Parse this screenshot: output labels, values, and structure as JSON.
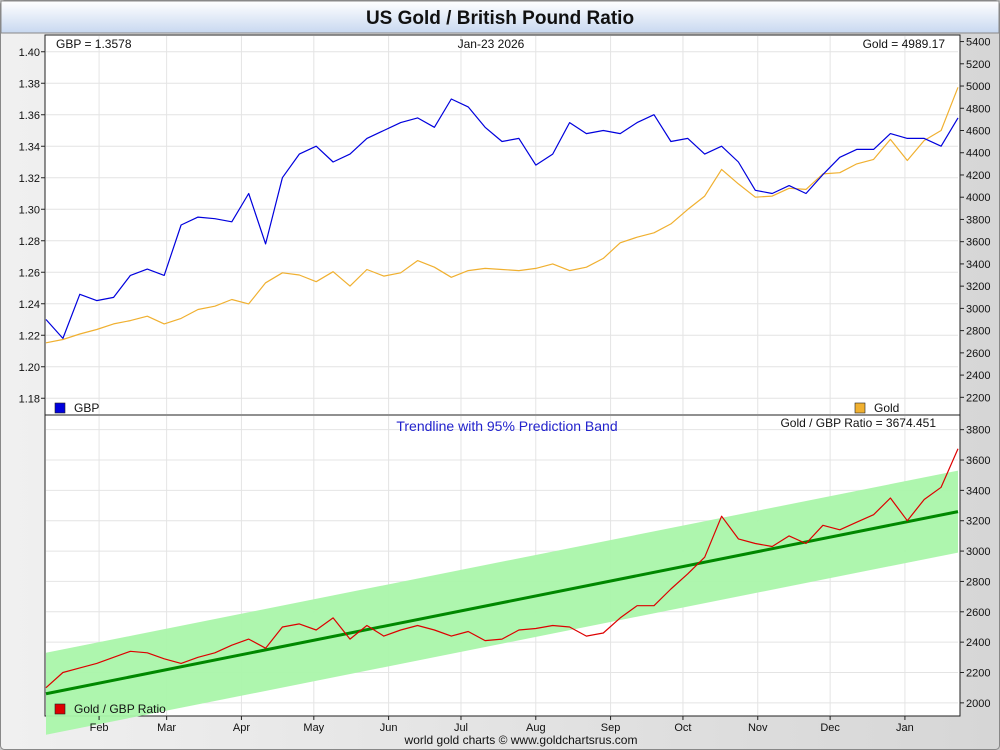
{
  "title": "US Gold / British Pound Ratio",
  "footer": "world gold charts © www.goldchartsrus.com",
  "colors": {
    "gbp": "#0000dd",
    "gold": "#f0b030",
    "ratio": "#dd0000",
    "trend": "#008800",
    "band": "#aaf5aa"
  },
  "chart_data": [
    {
      "type": "line",
      "name": "upper",
      "date_label": "Jan-23  2026",
      "gbp_readout": "GBP = 1.3578",
      "gold_readout": "Gold = 4989.17",
      "x_tick_labels": [
        "Feb",
        "Mar",
        "Apr",
        "May",
        "Jun",
        "Jul",
        "Aug",
        "Sep",
        "Oct",
        "Nov",
        "Dec",
        "Jan"
      ],
      "x_range": [
        "2025-01-10",
        "2026-01-23"
      ],
      "y_left": {
        "range": [
          1.17,
          1.41
        ],
        "ticks": [
          "1.18",
          "1.20",
          "1.22",
          "1.24",
          "1.26",
          "1.28",
          "1.30",
          "1.32",
          "1.34",
          "1.36",
          "1.38",
          "1.40"
        ]
      },
      "y_right": {
        "range": [
          2050,
          5450
        ],
        "ticks": [
          "2200",
          "2400",
          "2600",
          "2800",
          "3000",
          "3200",
          "3400",
          "3600",
          "3800",
          "4000",
          "4200",
          "4400",
          "4600",
          "4800",
          "5000",
          "5200",
          "5400"
        ]
      },
      "legend": [
        "GBP",
        "Gold"
      ],
      "series": [
        {
          "name": "GBP",
          "axis": "left",
          "points": [
            [
              "2025-01-10",
              1.23
            ],
            [
              "2025-01-17",
              1.218
            ],
            [
              "2025-01-24",
              1.246
            ],
            [
              "2025-01-31",
              1.242
            ],
            [
              "2025-02-07",
              1.244
            ],
            [
              "2025-02-14",
              1.258
            ],
            [
              "2025-02-21",
              1.262
            ],
            [
              "2025-02-28",
              1.258
            ],
            [
              "2025-03-07",
              1.29
            ],
            [
              "2025-03-14",
              1.295
            ],
            [
              "2025-03-21",
              1.294
            ],
            [
              "2025-03-28",
              1.292
            ],
            [
              "2025-04-04",
              1.31
            ],
            [
              "2025-04-11",
              1.278
            ],
            [
              "2025-04-18",
              1.32
            ],
            [
              "2025-04-25",
              1.335
            ],
            [
              "2025-05-02",
              1.34
            ],
            [
              "2025-05-09",
              1.33
            ],
            [
              "2025-05-16",
              1.335
            ],
            [
              "2025-05-23",
              1.345
            ],
            [
              "2025-05-30",
              1.35
            ],
            [
              "2025-06-06",
              1.355
            ],
            [
              "2025-06-13",
              1.358
            ],
            [
              "2025-06-20",
              1.352
            ],
            [
              "2025-06-27",
              1.37
            ],
            [
              "2025-07-04",
              1.365
            ],
            [
              "2025-07-11",
              1.352
            ],
            [
              "2025-07-18",
              1.343
            ],
            [
              "2025-07-25",
              1.345
            ],
            [
              "2025-08-01",
              1.328
            ],
            [
              "2025-08-08",
              1.335
            ],
            [
              "2025-08-15",
              1.355
            ],
            [
              "2025-08-22",
              1.348
            ],
            [
              "2025-08-29",
              1.35
            ],
            [
              "2025-09-05",
              1.348
            ],
            [
              "2025-09-12",
              1.355
            ],
            [
              "2025-09-19",
              1.36
            ],
            [
              "2025-09-26",
              1.343
            ],
            [
              "2025-10-03",
              1.345
            ],
            [
              "2025-10-10",
              1.335
            ],
            [
              "2025-10-17",
              1.34
            ],
            [
              "2025-10-24",
              1.33
            ],
            [
              "2025-10-31",
              1.312
            ],
            [
              "2025-11-07",
              1.31
            ],
            [
              "2025-11-14",
              1.315
            ],
            [
              "2025-11-21",
              1.31
            ],
            [
              "2025-11-28",
              1.322
            ],
            [
              "2025-12-05",
              1.333
            ],
            [
              "2025-12-12",
              1.338
            ],
            [
              "2025-12-19",
              1.338
            ],
            [
              "2025-12-26",
              1.348
            ],
            [
              "2026-01-02",
              1.345
            ],
            [
              "2026-01-09",
              1.345
            ],
            [
              "2026-01-16",
              1.34
            ],
            [
              "2026-01-23",
              1.358
            ]
          ]
        },
        {
          "name": "Gold",
          "axis": "right",
          "points": [
            [
              "2025-01-10",
              2690
            ],
            [
              "2025-01-17",
              2720
            ],
            [
              "2025-01-24",
              2770
            ],
            [
              "2025-01-31",
              2810
            ],
            [
              "2025-02-07",
              2860
            ],
            [
              "2025-02-14",
              2890
            ],
            [
              "2025-02-21",
              2930
            ],
            [
              "2025-02-28",
              2860
            ],
            [
              "2025-03-07",
              2910
            ],
            [
              "2025-03-14",
              2990
            ],
            [
              "2025-03-21",
              3020
            ],
            [
              "2025-03-28",
              3080
            ],
            [
              "2025-04-04",
              3040
            ],
            [
              "2025-04-11",
              3230
            ],
            [
              "2025-04-18",
              3320
            ],
            [
              "2025-04-25",
              3300
            ],
            [
              "2025-05-02",
              3240
            ],
            [
              "2025-05-09",
              3330
            ],
            [
              "2025-05-16",
              3200
            ],
            [
              "2025-05-23",
              3350
            ],
            [
              "2025-05-30",
              3290
            ],
            [
              "2025-06-06",
              3320
            ],
            [
              "2025-06-13",
              3430
            ],
            [
              "2025-06-20",
              3370
            ],
            [
              "2025-06-27",
              3280
            ],
            [
              "2025-07-04",
              3340
            ],
            [
              "2025-07-11",
              3360
            ],
            [
              "2025-07-18",
              3350
            ],
            [
              "2025-07-25",
              3340
            ],
            [
              "2025-08-01",
              3360
            ],
            [
              "2025-08-08",
              3400
            ],
            [
              "2025-08-15",
              3340
            ],
            [
              "2025-08-22",
              3370
            ],
            [
              "2025-08-29",
              3450
            ],
            [
              "2025-09-05",
              3590
            ],
            [
              "2025-09-12",
              3640
            ],
            [
              "2025-09-19",
              3680
            ],
            [
              "2025-09-26",
              3760
            ],
            [
              "2025-10-03",
              3890
            ],
            [
              "2025-10-10",
              4010
            ],
            [
              "2025-10-17",
              4250
            ],
            [
              "2025-10-24",
              4120
            ],
            [
              "2025-10-31",
              4000
            ],
            [
              "2025-11-07",
              4010
            ],
            [
              "2025-11-14",
              4080
            ],
            [
              "2025-11-21",
              4070
            ],
            [
              "2025-11-28",
              4210
            ],
            [
              "2025-12-05",
              4220
            ],
            [
              "2025-12-12",
              4300
            ],
            [
              "2025-12-19",
              4340
            ],
            [
              "2025-12-26",
              4520
            ],
            [
              "2026-01-02",
              4330
            ],
            [
              "2026-01-09",
              4510
            ],
            [
              "2026-01-16",
              4600
            ],
            [
              "2026-01-23",
              4989
            ]
          ]
        }
      ]
    },
    {
      "type": "line",
      "name": "lower",
      "subtitle": "Trendline with 95% Prediction Band",
      "ratio_readout": "Gold / GBP Ratio = 3674.451",
      "x_tick_labels": [
        "Feb",
        "Mar",
        "Apr",
        "May",
        "Jun",
        "Jul",
        "Aug",
        "Sep",
        "Oct",
        "Nov",
        "Dec",
        "Jan"
      ],
      "y_range": [
        1920,
        3890
      ],
      "y_ticks": [
        "2000",
        "2200",
        "2400",
        "2600",
        "2800",
        "3000",
        "3200",
        "3400",
        "3600",
        "3800"
      ],
      "legend": [
        "Gold / GBP Ratio"
      ],
      "trendline": {
        "start": [
          "2025-01-10",
          2060
        ],
        "end": [
          "2026-01-23",
          3260
        ]
      },
      "band_half_width": 270,
      "series": [
        {
          "name": "Gold / GBP Ratio",
          "points": [
            [
              "2025-01-10",
              2100
            ],
            [
              "2025-01-17",
              2200
            ],
            [
              "2025-01-24",
              2230
            ],
            [
              "2025-01-31",
              2260
            ],
            [
              "2025-02-07",
              2300
            ],
            [
              "2025-02-14",
              2340
            ],
            [
              "2025-02-21",
              2330
            ],
            [
              "2025-02-28",
              2290
            ],
            [
              "2025-03-07",
              2260
            ],
            [
              "2025-03-14",
              2300
            ],
            [
              "2025-03-21",
              2330
            ],
            [
              "2025-03-28",
              2380
            ],
            [
              "2025-04-04",
              2420
            ],
            [
              "2025-04-11",
              2360
            ],
            [
              "2025-04-18",
              2500
            ],
            [
              "2025-04-25",
              2520
            ],
            [
              "2025-05-02",
              2480
            ],
            [
              "2025-05-09",
              2560
            ],
            [
              "2025-05-16",
              2420
            ],
            [
              "2025-05-23",
              2510
            ],
            [
              "2025-05-30",
              2440
            ],
            [
              "2025-06-06",
              2480
            ],
            [
              "2025-06-13",
              2510
            ],
            [
              "2025-06-20",
              2480
            ],
            [
              "2025-06-27",
              2440
            ],
            [
              "2025-07-04",
              2470
            ],
            [
              "2025-07-11",
              2410
            ],
            [
              "2025-07-18",
              2420
            ],
            [
              "2025-07-25",
              2480
            ],
            [
              "2025-08-01",
              2490
            ],
            [
              "2025-08-08",
              2510
            ],
            [
              "2025-08-15",
              2500
            ],
            [
              "2025-08-22",
              2440
            ],
            [
              "2025-08-29",
              2460
            ],
            [
              "2025-09-05",
              2560
            ],
            [
              "2025-09-12",
              2640
            ],
            [
              "2025-09-19",
              2640
            ],
            [
              "2025-09-26",
              2750
            ],
            [
              "2025-10-03",
              2850
            ],
            [
              "2025-10-10",
              2960
            ],
            [
              "2025-10-17",
              3230
            ],
            [
              "2025-10-24",
              3080
            ],
            [
              "2025-10-31",
              3050
            ],
            [
              "2025-11-07",
              3030
            ],
            [
              "2025-11-14",
              3100
            ],
            [
              "2025-11-21",
              3050
            ],
            [
              "2025-11-28",
              3170
            ],
            [
              "2025-12-05",
              3140
            ],
            [
              "2025-12-12",
              3190
            ],
            [
              "2025-12-19",
              3240
            ],
            [
              "2025-12-26",
              3350
            ],
            [
              "2026-01-02",
              3200
            ],
            [
              "2026-01-09",
              3340
            ],
            [
              "2026-01-16",
              3420
            ],
            [
              "2026-01-23",
              3674
            ]
          ]
        }
      ]
    }
  ]
}
